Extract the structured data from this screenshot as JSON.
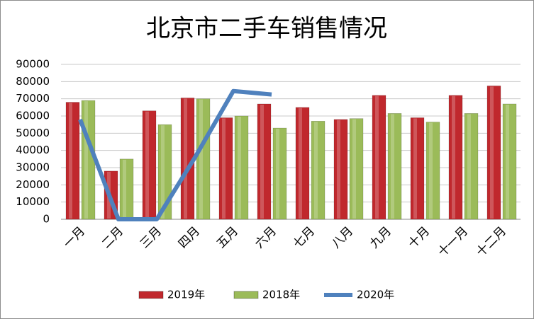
{
  "chart_data": {
    "type": "bar",
    "title": "北京市二手车销售情况",
    "categories": [
      "一月",
      "二月",
      "三月",
      "四月",
      "五月",
      "六月",
      "七月",
      "八月",
      "九月",
      "十月",
      "十一月",
      "十二月"
    ],
    "series": [
      {
        "name": "2019年",
        "color": "#c0282d",
        "type": "bar",
        "values": [
          68000,
          28000,
          63000,
          70500,
          59000,
          67000,
          65000,
          58000,
          72000,
          59000,
          72000,
          77500
        ]
      },
      {
        "name": "2018年",
        "color": "#9bbb59",
        "type": "bar",
        "values": [
          69000,
          35000,
          55000,
          70000,
          60000,
          53000,
          57000,
          58500,
          61500,
          56500,
          61500,
          67000
        ]
      },
      {
        "name": "2020年",
        "color": "#4f81bd",
        "type": "line",
        "values": [
          58000,
          0,
          0,
          36000,
          74500,
          72500,
          null,
          null,
          null,
          null,
          null,
          null
        ]
      }
    ],
    "ylim": [
      0,
      90000
    ],
    "yticks": [
      0,
      10000,
      20000,
      30000,
      40000,
      50000,
      60000,
      70000,
      80000,
      90000
    ],
    "grid": true,
    "legend": "bottom"
  }
}
